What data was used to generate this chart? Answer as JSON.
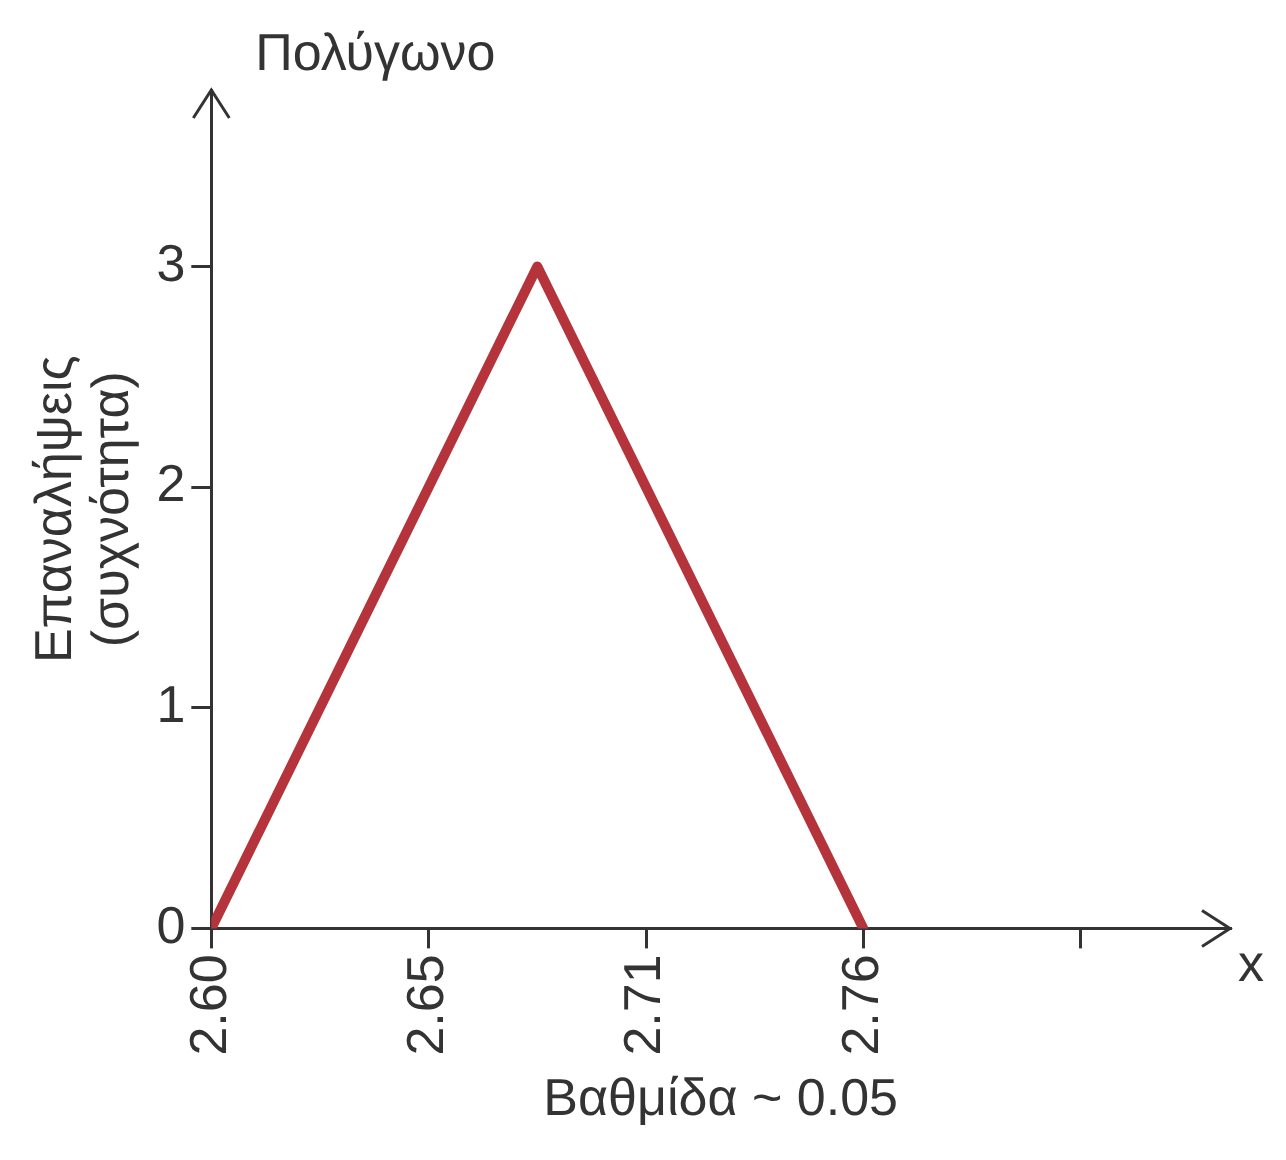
{
  "chart_data": {
    "type": "line",
    "title": "Πολύγωνο",
    "xlabel": "Βαθμίδα ~ 0.05",
    "ylabel": "Επαναλήψεις (συχνότητα)",
    "annotations": [
      "x"
    ],
    "x": [
      2.6,
      2.68,
      2.76
    ],
    "series": [
      {
        "color": "#b5343c",
        "values": [
          0,
          3,
          0
        ]
      }
    ],
    "xlim": [
      2.6,
      2.85
    ],
    "xticks": [
      {
        "value": 2.6,
        "label": "2.60"
      },
      {
        "value": 2.6533,
        "label": "2.65"
      },
      {
        "value": 2.7067,
        "label": "2.71"
      },
      {
        "value": 2.76,
        "label": "2.76"
      },
      {
        "value": 2.8133,
        "label": null
      }
    ],
    "ylim": [
      0,
      3.8
    ],
    "yticks": [
      0,
      1,
      2,
      3
    ],
    "grid": false,
    "legend": false,
    "marker": "none",
    "line_style": "solid"
  }
}
